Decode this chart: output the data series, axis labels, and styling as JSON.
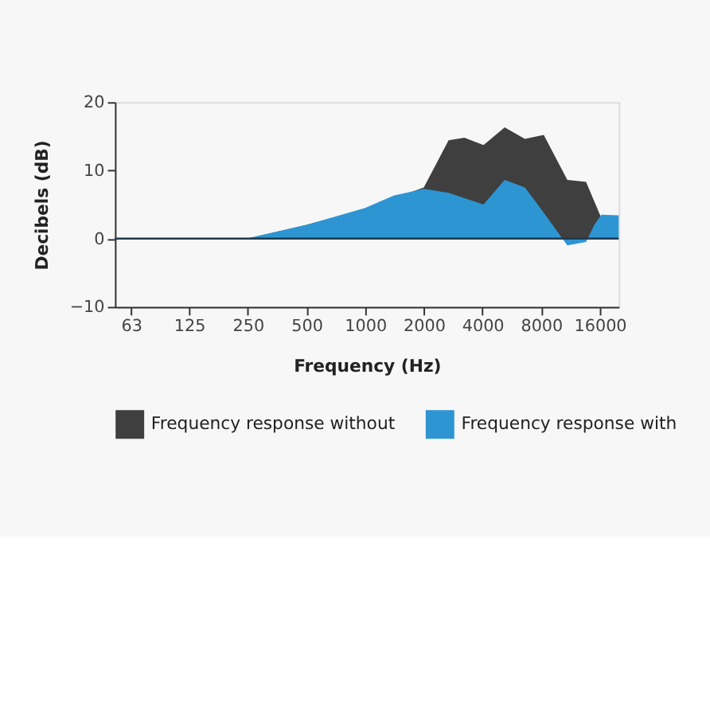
{
  "chart_data": {
    "type": "area",
    "xlabel": "Frequency (Hz)",
    "ylabel": "Decibels (dB)",
    "log": "x",
    "xlim": [
      52,
      20000
    ],
    "xticks": [
      63,
      125,
      250,
      500,
      1000,
      2000,
      4000,
      8000,
      16000
    ],
    "ylim": [
      -10,
      20
    ],
    "yticks": [
      -10,
      0,
      10,
      20
    ],
    "grid": false,
    "legend": "bottom",
    "ref_lines": [
      {
        "axis": "y",
        "value": 0,
        "color": "#1f3a4d"
      }
    ],
    "series": [
      {
        "name": "Frequency response without",
        "color": "#3f3f40",
        "x": [
          52,
          250,
          500,
          1000,
          2000,
          2680,
          3230,
          4050,
          5200,
          6600,
          8250,
          10900,
          13600,
          16300,
          18000
        ],
        "values": [
          0,
          0,
          2,
          4.3,
          7.5,
          14.4,
          14.8,
          13.7,
          16.3,
          14.6,
          15.2,
          8.6,
          8.3,
          3,
          0
        ]
      },
      {
        "name": "Frequency response with",
        "color": "#2e95d3",
        "x": [
          52,
          245,
          500,
          1000,
          1400,
          2000,
          2680,
          4050,
          5200,
          6600,
          8250,
          10900,
          13600,
          15000,
          16300,
          20000
        ],
        "values": [
          0,
          0,
          2,
          4.5,
          6.3,
          7.3,
          6.7,
          5,
          8.6,
          7.5,
          3.8,
          -1,
          -0.5,
          2,
          3.5,
          3.4
        ]
      }
    ]
  }
}
